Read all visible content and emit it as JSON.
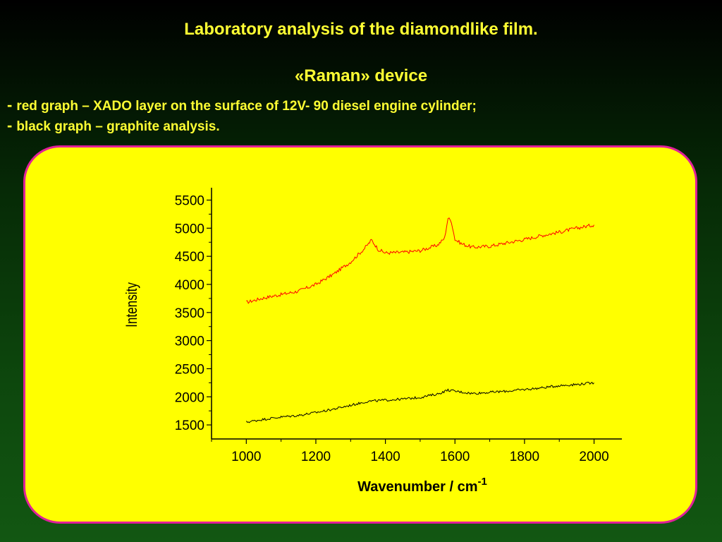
{
  "slide": {
    "title": "Laboratory analysis of the diamondlike film.",
    "subtitle": "«Raman» device",
    "bullets": [
      {
        "dash": "-",
        "text": "red graph – XADO layer on the surface of 12V- 90 diesel engine cylinder;"
      },
      {
        "dash": "-",
        "text": "black graph –  graphite analysis."
      }
    ]
  },
  "colors": {
    "red_series": "#ff0000",
    "black_series": "#000000",
    "panel_fill": "#ffff00",
    "panel_border": "#e0209a",
    "text": "#ffff33"
  },
  "chart_data": {
    "type": "line",
    "ylabel": "Intensity",
    "xlabel_main": "Wavenumber / cm",
    "xlabel_sup": "-1",
    "xlim": [
      900,
      2080
    ],
    "ylim": [
      1250,
      5720
    ],
    "x_ticks": [
      1000,
      1200,
      1400,
      1600,
      1800,
      2000
    ],
    "y_ticks": [
      1500,
      2000,
      2500,
      3000,
      3500,
      4000,
      4500,
      5000,
      5500
    ],
    "grid": false,
    "series": [
      {
        "color": "#ff0000",
        "x": [
          1000,
          1050,
          1100,
          1150,
          1200,
          1250,
          1300,
          1340,
          1360,
          1380,
          1400,
          1450,
          1500,
          1550,
          1570,
          1580,
          1590,
          1600,
          1620,
          1650,
          1700,
          1750,
          1800,
          1850,
          1900,
          1950,
          2000
        ],
        "y": [
          3680,
          3760,
          3820,
          3880,
          4000,
          4180,
          4400,
          4640,
          4790,
          4620,
          4560,
          4570,
          4600,
          4700,
          4820,
          5180,
          5120,
          4800,
          4720,
          4660,
          4680,
          4740,
          4800,
          4870,
          4930,
          5000,
          5060
        ]
      },
      {
        "color": "#000000",
        "x": [
          1000,
          1050,
          1100,
          1150,
          1200,
          1250,
          1300,
          1350,
          1400,
          1450,
          1500,
          1550,
          1580,
          1600,
          1650,
          1700,
          1750,
          1800,
          1850,
          1900,
          1950,
          2000
        ],
        "y": [
          1550,
          1600,
          1640,
          1670,
          1720,
          1780,
          1850,
          1920,
          1940,
          1960,
          1990,
          2050,
          2120,
          2100,
          2060,
          2080,
          2100,
          2130,
          2160,
          2200,
          2220,
          2250
        ]
      }
    ]
  }
}
